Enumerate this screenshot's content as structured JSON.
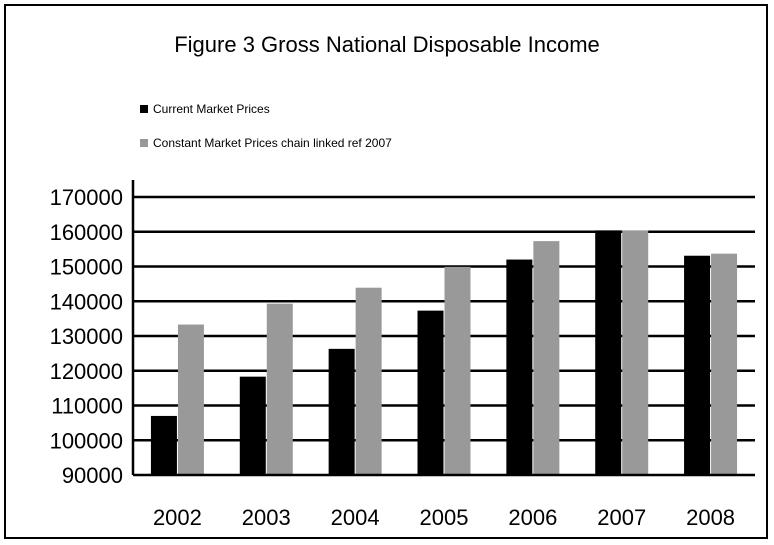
{
  "chart_data": {
    "type": "bar",
    "title": "Figure 3 Gross National Disposable Income",
    "xlabel": "",
    "ylabel": "",
    "categories": [
      "2002",
      "2003",
      "2004",
      "2005",
      "2006",
      "2007",
      "2008"
    ],
    "series": [
      {
        "name": "Current Market Prices",
        "color": "#000000",
        "values": [
          107000,
          118300,
          126300,
          137300,
          152000,
          160400,
          153100
        ]
      },
      {
        "name": "Constant Market Prices chain  linked ref 2007",
        "color": "#999999",
        "values": [
          133300,
          139300,
          143900,
          149900,
          157300,
          160400,
          153700
        ]
      }
    ],
    "ylim": [
      90000,
      170000
    ],
    "yticks": [
      90000,
      100000,
      110000,
      120000,
      130000,
      140000,
      150000,
      160000,
      170000
    ],
    "grid": true,
    "legend_position": "top-left"
  }
}
